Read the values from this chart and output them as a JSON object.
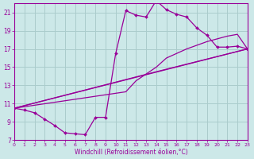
{
  "xlabel": "Windchill (Refroidissement éolien,°C)",
  "bg_color": "#cce8e8",
  "line_color": "#990099",
  "grid_color": "#aacccc",
  "xlim": [
    0,
    23
  ],
  "ylim": [
    7,
    22
  ],
  "xticks": [
    0,
    1,
    2,
    3,
    4,
    5,
    6,
    7,
    8,
    9,
    10,
    11,
    12,
    13,
    14,
    15,
    16,
    17,
    18,
    19,
    20,
    21,
    22,
    23
  ],
  "yticks": [
    7,
    9,
    11,
    13,
    15,
    17,
    19,
    21
  ],
  "series1_x": [
    0,
    1,
    2,
    3,
    4,
    5,
    6,
    7,
    8,
    9,
    10,
    11,
    12,
    13,
    14,
    15,
    16,
    17,
    18,
    19,
    20,
    21,
    22,
    23
  ],
  "series1_y": [
    10.5,
    10.3,
    10.0,
    9.3,
    8.6,
    7.8,
    7.7,
    7.6,
    9.5,
    9.5,
    16.5,
    21.2,
    20.7,
    20.5,
    22.3,
    21.3,
    20.8,
    20.5,
    19.3,
    18.5,
    17.2,
    17.2,
    17.3,
    17.0
  ],
  "series2_x": [
    0,
    23
  ],
  "series2_y": [
    10.5,
    17.0
  ],
  "series3_x": [
    0,
    14,
    23
  ],
  "series3_y": [
    10.5,
    14.5,
    17.0
  ],
  "series4_x": [
    0,
    11,
    12,
    14,
    15,
    16,
    17,
    18,
    19,
    20,
    21,
    22,
    23
  ],
  "series4_y": [
    10.5,
    12.3,
    13.5,
    15.0,
    16.0,
    16.5,
    17.0,
    17.4,
    17.8,
    18.1,
    18.4,
    18.6,
    17.0
  ]
}
